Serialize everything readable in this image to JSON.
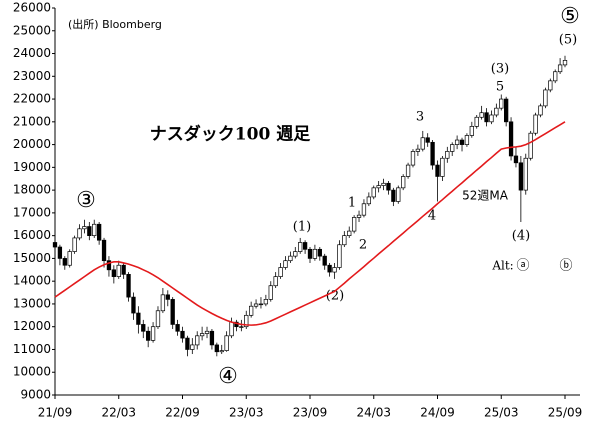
{
  "chart_data": {
    "type": "candlestick",
    "title": "ナスダック100 週足",
    "source": "(出所) Bloomberg",
    "annotations": [
      "③",
      "④",
      "⑤",
      "(5)",
      "(3)",
      "5",
      "3",
      "1",
      "2",
      "4",
      "(1)",
      "(2)",
      "(4)",
      "Alt:",
      "ⓐ",
      "ⓑ"
    ],
    "categories": [
      "21/09",
      null,
      null,
      null,
      null,
      null,
      null,
      null,
      null,
      null,
      null,
      null,
      null,
      "22/03",
      null,
      null,
      null,
      null,
      null,
      null,
      null,
      null,
      null,
      null,
      null,
      null,
      "22/09",
      null,
      null,
      null,
      null,
      null,
      null,
      null,
      null,
      null,
      null,
      null,
      null,
      "23/03",
      null,
      null,
      null,
      null,
      null,
      null,
      null,
      null,
      null,
      null,
      null,
      null,
      "23/09",
      null,
      null,
      null,
      null,
      null,
      null,
      null,
      null,
      null,
      null,
      null,
      null,
      "24/03",
      null,
      null,
      null,
      null,
      null,
      null,
      null,
      null,
      null,
      null,
      null,
      null,
      "24/09",
      null,
      null,
      null,
      null,
      null,
      null,
      null,
      null,
      null,
      null,
      null,
      null,
      "25/03",
      null,
      null,
      null,
      null,
      null,
      null,
      null,
      null,
      null,
      null,
      null,
      null,
      "25/09"
    ],
    "open": [
      15700,
      15500,
      15000,
      14700,
      15300,
      15900,
      16300,
      16400,
      16000,
      16500,
      15800,
      14900,
      14500,
      14200,
      14700,
      14300,
      13300,
      12600,
      12100,
      11800,
      11400,
      12000,
      12700,
      13400,
      13200,
      12100,
      11800,
      11500,
      11000,
      11200,
      11600,
      11700,
      11800,
      11200,
      10900,
      10950,
      11600,
      12200,
      12000,
      12000,
      12500,
      12900,
      13000,
      13000,
      13200,
      13800,
      14200,
      14600,
      14900,
      15100,
      15300,
      15700,
      15400,
      15000,
      15400,
      15100,
      14700,
      14400,
      14600,
      15600,
      16000,
      16200,
      16800,
      16900,
      17400,
      17700,
      18100,
      18200,
      18300,
      18000,
      17500,
      18100,
      18600,
      19100,
      19700,
      19800,
      20300,
      20100,
      19100,
      18600,
      19400,
      19700,
      20000,
      20200,
      20000,
      20400,
      20800,
      21200,
      21400,
      21000,
      21300,
      21600,
      22000,
      21000,
      19500,
      19200,
      18000,
      19400,
      20500,
      21300,
      21700,
      22400,
      22800,
      23200,
      23500
    ],
    "high": [
      15900,
      15600,
      15100,
      15400,
      16000,
      16500,
      16700,
      16600,
      16700,
      16600,
      15900,
      15100,
      14700,
      14900,
      14800,
      14400,
      13500,
      12900,
      12300,
      12000,
      12200,
      12900,
      13700,
      13600,
      13300,
      12300,
      12000,
      11600,
      11500,
      11800,
      12000,
      12000,
      11900,
      11300,
      11200,
      11800,
      12400,
      12300,
      12300,
      12700,
      13100,
      13200,
      13300,
      13400,
      14000,
      14400,
      14800,
      15100,
      15300,
      15500,
      15900,
      15800,
      15500,
      15600,
      15500,
      15200,
      14800,
      14800,
      15800,
      16200,
      16400,
      16900,
      17100,
      17600,
      17900,
      18200,
      18400,
      18500,
      18400,
      18100,
      18200,
      18700,
      19200,
      19800,
      20000,
      20600,
      20500,
      20200,
      19300,
      19500,
      19900,
      20100,
      20400,
      20300,
      20500,
      21000,
      21300,
      21700,
      21600,
      21500,
      21800,
      22200,
      22100,
      21200,
      19900,
      19500,
      19600,
      20600,
      21400,
      21800,
      22500,
      22900,
      23300,
      23800,
      23900
    ],
    "low": [
      15200,
      14700,
      14500,
      14600,
      15200,
      15800,
      16100,
      15800,
      15900,
      15600,
      14600,
      14200,
      13900,
      14100,
      14100,
      13100,
      12300,
      11700,
      11500,
      11100,
      11300,
      11900,
      12600,
      12900,
      11900,
      11600,
      11300,
      10700,
      10800,
      11000,
      11400,
      11500,
      11000,
      10700,
      10800,
      10900,
      11500,
      11800,
      11800,
      11900,
      12400,
      12800,
      12800,
      12900,
      13100,
      13700,
      14100,
      14500,
      14800,
      15000,
      15200,
      15200,
      14800,
      14900,
      14900,
      14500,
      14200,
      14100,
      14500,
      15500,
      15900,
      16100,
      16600,
      16800,
      17300,
      17600,
      17900,
      18000,
      17800,
      17300,
      17400,
      18000,
      18500,
      19000,
      19500,
      19700,
      19900,
      18900,
      17500,
      18400,
      19200,
      19500,
      19800,
      19700,
      19900,
      20300,
      20700,
      21100,
      20800,
      20900,
      21200,
      21500,
      20800,
      19300,
      19000,
      16600,
      17800,
      19300,
      20400,
      21200,
      21600,
      22300,
      22700,
      23100,
      23400
    ],
    "close": [
      15500,
      15000,
      14700,
      15300,
      15900,
      16300,
      16400,
      16000,
      16500,
      15800,
      14900,
      14500,
      14200,
      14700,
      14300,
      13300,
      12600,
      12100,
      11800,
      11400,
      12000,
      12700,
      13400,
      13200,
      12100,
      11800,
      11500,
      11000,
      11200,
      11600,
      11700,
      11800,
      11200,
      10900,
      10950,
      11600,
      12200,
      12000,
      12000,
      12500,
      12900,
      13000,
      13000,
      13200,
      13800,
      14200,
      14600,
      14900,
      15100,
      15300,
      15700,
      15400,
      15000,
      15400,
      15100,
      14700,
      14400,
      14600,
      15600,
      16000,
      16200,
      16800,
      16900,
      17400,
      17700,
      18100,
      18200,
      18300,
      18000,
      17500,
      18100,
      18600,
      19100,
      19700,
      19800,
      20300,
      20100,
      19100,
      18600,
      19400,
      19700,
      20000,
      20200,
      20000,
      20400,
      20800,
      21200,
      21400,
      21000,
      21300,
      21600,
      22000,
      21000,
      19500,
      19200,
      18000,
      19400,
      20500,
      21300,
      21700,
      22400,
      22800,
      23200,
      23500,
      23700
    ],
    "series": [
      {
        "name": "52週MA",
        "color": "#e31a1c",
        "values": [
          13300,
          13450,
          13600,
          13750,
          13900,
          14050,
          14200,
          14350,
          14500,
          14620,
          14720,
          14800,
          14850,
          14850,
          14800,
          14750,
          14680,
          14600,
          14500,
          14400,
          14280,
          14150,
          14000,
          13850,
          13700,
          13550,
          13400,
          13250,
          13100,
          12950,
          12820,
          12700,
          12580,
          12470,
          12370,
          12280,
          12200,
          12150,
          12100,
          12080,
          12070,
          12080,
          12120,
          12170,
          12250,
          12350,
          12450,
          12550,
          12650,
          12750,
          12850,
          12950,
          13050,
          13150,
          13250,
          13350,
          13450,
          13550,
          13730,
          13910,
          14100,
          14280,
          14460,
          14640,
          14830,
          15010,
          15200,
          15380,
          15560,
          15750,
          15930,
          16110,
          16300,
          16480,
          16660,
          16850,
          17030,
          17210,
          17400,
          17580,
          17770,
          17950,
          18140,
          18320,
          18510,
          18690,
          18880,
          19060,
          19250,
          19430,
          19620,
          19800,
          19850,
          19880,
          19900,
          19930,
          20000,
          20100,
          20220,
          20350,
          20480,
          20610,
          20740,
          20870,
          21000
        ]
      }
    ],
    "up_color": "#ffffff",
    "down_color": "#000000",
    "ylim": [
      9000,
      26000
    ],
    "yticks": [
      9000,
      10000,
      11000,
      12000,
      13000,
      14000,
      15000,
      16000,
      17000,
      18000,
      19000,
      20000,
      21000,
      22000,
      23000,
      24000,
      25000,
      26000
    ],
    "grid": false
  }
}
